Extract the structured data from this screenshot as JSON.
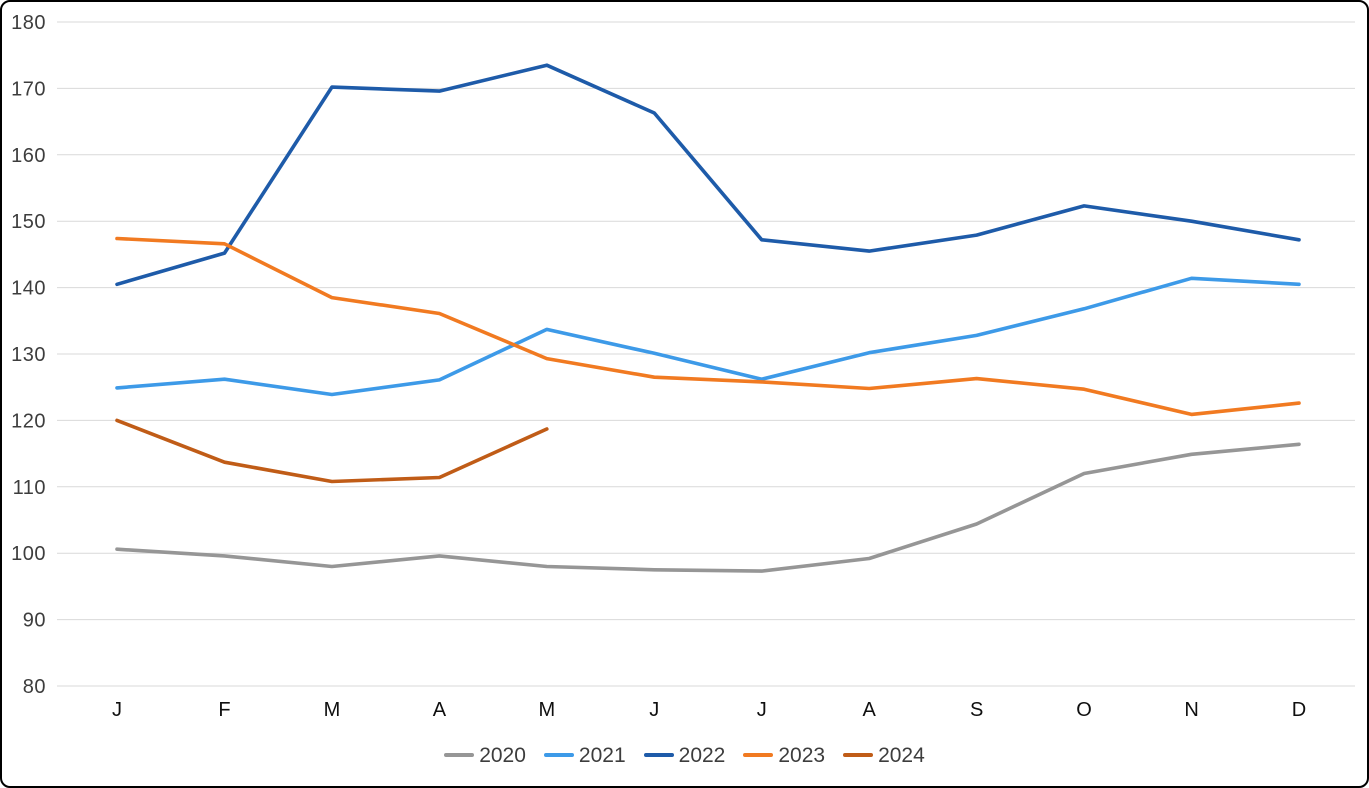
{
  "chart_data": {
    "type": "line",
    "title": "",
    "xlabel": "",
    "ylabel": "",
    "x_labels": [
      "J",
      "F",
      "M",
      "A",
      "M",
      "J",
      "J",
      "A",
      "S",
      "O",
      "N",
      "D"
    ],
    "ylim": [
      80,
      180
    ],
    "ytick_step": 10,
    "yticks": [
      80,
      90,
      100,
      110,
      120,
      130,
      140,
      150,
      160,
      170,
      180
    ],
    "grid": true,
    "legend_position": "bottom",
    "series": [
      {
        "name": "2020",
        "color": "#969696",
        "values": [
          100.6,
          99.6,
          98.0,
          99.6,
          98.0,
          97.5,
          97.3,
          99.2,
          104.4,
          112.0,
          114.9,
          116.4
        ]
      },
      {
        "name": "2021",
        "color": "#3D9AE8",
        "values": [
          124.9,
          126.2,
          123.9,
          126.1,
          133.7,
          130.1,
          126.2,
          130.2,
          132.8,
          136.8,
          141.4,
          140.5
        ]
      },
      {
        "name": "2022",
        "color": "#1E5BA9",
        "values": [
          140.5,
          145.2,
          170.2,
          169.6,
          173.5,
          166.3,
          147.2,
          145.5,
          147.9,
          152.3,
          150.0,
          147.2
        ]
      },
      {
        "name": "2023",
        "color": "#F17A21",
        "values": [
          147.4,
          146.6,
          138.5,
          136.1,
          129.3,
          126.5,
          125.8,
          124.8,
          126.3,
          124.7,
          120.9,
          122.6
        ]
      },
      {
        "name": "2024",
        "color": "#C05C17",
        "values": [
          120.0,
          113.7,
          110.8,
          111.4,
          118.7
        ]
      }
    ],
    "colors": {
      "background": "#FFFFFF",
      "border": "#000000",
      "gridline": "#D9D9D9",
      "y_tick_label": "#3D3D3D",
      "x_tick_label": "#0F0F0F",
      "legend_text": "#3D3D3D"
    }
  }
}
